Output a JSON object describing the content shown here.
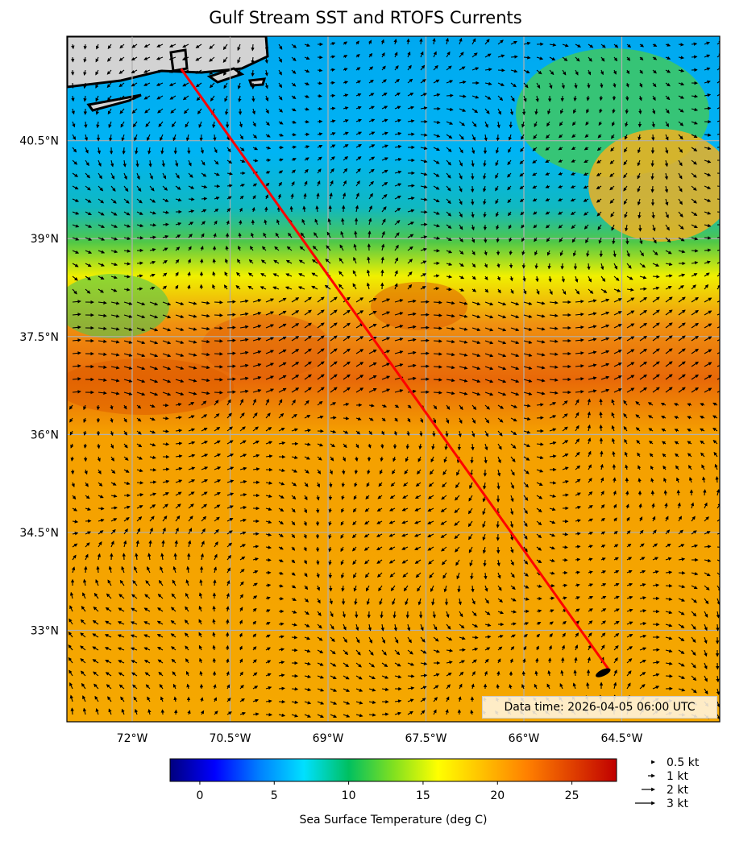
{
  "title": "Gulf Stream SST and RTOFS Currents",
  "data_time": "Data time: 2026-04-05 06:00 UTC",
  "lat_ticks": [
    {
      "value": 40.5,
      "label": "40.5°N"
    },
    {
      "value": 39.0,
      "label": "39°N"
    },
    {
      "value": 37.5,
      "label": "37.5°N"
    },
    {
      "value": 36.0,
      "label": "36°N"
    },
    {
      "value": 34.5,
      "label": "34.5°N"
    },
    {
      "value": 33.0,
      "label": "33°N"
    }
  ],
  "lon_ticks": [
    {
      "value": -72.0,
      "label": "72°W"
    },
    {
      "value": -70.5,
      "label": "70.5°W"
    },
    {
      "value": -69.0,
      "label": "69°W"
    },
    {
      "value": -67.5,
      "label": "67.5°W"
    },
    {
      "value": -66.0,
      "label": "66°W"
    },
    {
      "value": -64.5,
      "label": "64.5°W"
    }
  ],
  "extent": {
    "lon_min": -73.0,
    "lon_max": -63.0,
    "lat_min": 31.6,
    "lat_max": 42.1
  },
  "route": {
    "start": {
      "lon": -71.25,
      "lat": 41.6
    },
    "end": {
      "lon": -64.7,
      "lat": 32.4
    },
    "color": "#ff0000"
  },
  "colorbar": {
    "vmin": -2,
    "vmax": 28,
    "ticks": [
      {
        "value": 0,
        "label": "0"
      },
      {
        "value": 5,
        "label": "5"
      },
      {
        "value": 10,
        "label": "10"
      },
      {
        "value": 15,
        "label": "15"
      },
      {
        "value": 20,
        "label": "20"
      },
      {
        "value": 25,
        "label": "25"
      }
    ],
    "label": "Sea Surface Temperature (deg C)",
    "stops": [
      "#00007f",
      "#0000ff",
      "#0080ff",
      "#00e0ff",
      "#00c060",
      "#80e020",
      "#ffff00",
      "#ffc000",
      "#ff8000",
      "#e04000",
      "#c00000"
    ]
  },
  "arrow_legend": [
    {
      "speed_kt": 0.5,
      "label": "0.5 kt"
    },
    {
      "speed_kt": 1,
      "label": "1 kt"
    },
    {
      "speed_kt": 2,
      "label": "2 kt"
    },
    {
      "speed_kt": 3,
      "label": "3 kt"
    }
  ],
  "colors": {
    "land": "#d3d3d3",
    "coast": "#000000",
    "grid": "#b0b0b0",
    "border": "#000000"
  }
}
